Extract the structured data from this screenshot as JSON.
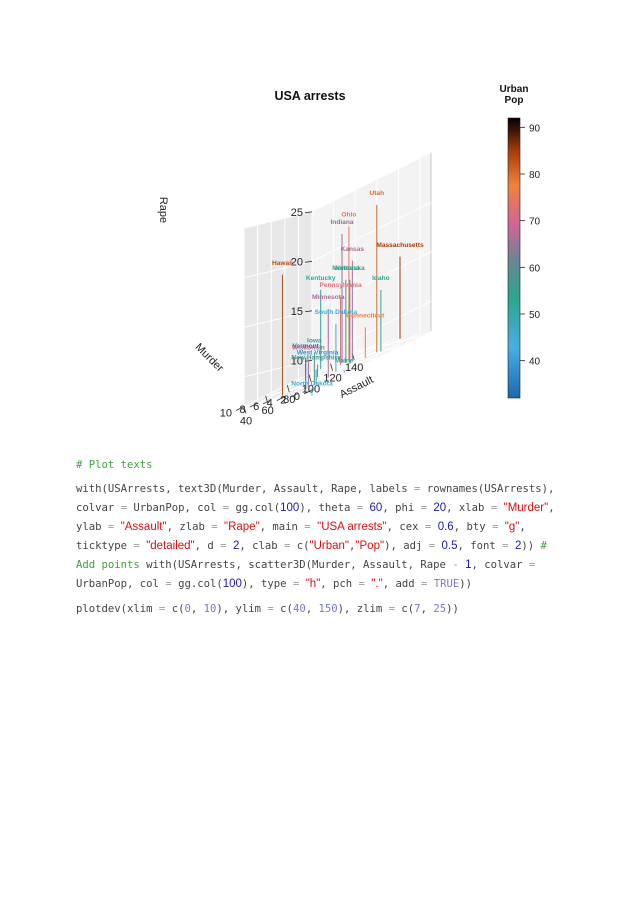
{
  "colors": {
    "comment": "#3f9f3f",
    "string": "#d01010",
    "number": "#1a1aa6",
    "plain": "#444444"
  },
  "chart_data": {
    "type": "scatter",
    "title": "USA arrests",
    "xlabel": "Murder",
    "ylabel": "Assault",
    "zlabel": "Rape",
    "xlim": [
      0,
      10
    ],
    "ylim": [
      40,
      150
    ],
    "zlim": [
      7,
      25
    ],
    "x_ticks": [
      "0",
      "2",
      "4",
      "6",
      "8",
      "10"
    ],
    "y_ticks": [
      "40",
      "60",
      "80",
      "100",
      "120",
      "140"
    ],
    "z_ticks": [
      "10",
      "15",
      "20",
      "25"
    ],
    "colorkey": {
      "title": [
        "Urban",
        "Pop"
      ],
      "ticks": [
        "40",
        "50",
        "60",
        "70",
        "80",
        "90"
      ],
      "range": [
        32,
        92
      ]
    },
    "points": [
      {
        "label": "Utah",
        "x": 3.2,
        "y": 120,
        "z": 22.9,
        "urban": 80
      },
      {
        "label": "Ohio",
        "x": 7.3,
        "y": 120,
        "z": 21.4,
        "urban": 75
      },
      {
        "label": "Indiana",
        "x": 7.2,
        "y": 113,
        "z": 21.0,
        "urban": 65
      },
      {
        "label": "Hawaii",
        "x": 5.3,
        "y": 46,
        "z": 20.2,
        "urban": 83
      },
      {
        "label": "Kansas",
        "x": 6.0,
        "y": 115,
        "z": 18.0,
        "urban": 66
      },
      {
        "label": "Massachusetts",
        "x": 4.4,
        "y": 149,
        "z": 16.3,
        "urban": 85
      },
      {
        "label": "Nebraska",
        "x": 4.3,
        "y": 102,
        "z": 16.5,
        "urban": 62
      },
      {
        "label": "Idaho",
        "x": 2.6,
        "y": 120,
        "z": 14.2,
        "urban": 54
      },
      {
        "label": "Montana",
        "x": 6.0,
        "y": 109,
        "z": 16.4,
        "urban": 53
      },
      {
        "label": "Minnesota",
        "x": 2.7,
        "y": 72,
        "z": 14.9,
        "urban": 66
      },
      {
        "label": "Pennsylvania",
        "x": 6.3,
        "y": 106,
        "z": 14.9,
        "urban": 72
      },
      {
        "label": "Kentucky",
        "x": 9.7,
        "y": 109,
        "z": 16.0,
        "urban": 52
      },
      {
        "label": "South Dakota",
        "x": 3.8,
        "y": 86,
        "z": 12.8,
        "urban": 45
      },
      {
        "label": "Connecticut",
        "x": 3.3,
        "y": 110,
        "z": 11.1,
        "urban": 77
      },
      {
        "label": "Iowa",
        "x": 2.2,
        "y": 56,
        "z": 11.3,
        "urban": 57
      },
      {
        "label": "Vermont",
        "x": 2.2,
        "y": 48,
        "z": 11.2,
        "urban": 32
      },
      {
        "label": "Wisconsin",
        "x": 2.6,
        "y": 53,
        "z": 10.8,
        "urban": 66
      },
      {
        "label": "New Hampshire",
        "x": 2.1,
        "y": 57,
        "z": 9.5,
        "urban": 56
      },
      {
        "label": "Maine",
        "x": 2.1,
        "y": 83,
        "z": 7.8,
        "urban": 51
      },
      {
        "label": "West Virginia",
        "x": 5.7,
        "y": 81,
        "z": 9.3,
        "urban": 39
      },
      {
        "label": "North Dakota",
        "x": 0.8,
        "y": 45,
        "z": 7.3,
        "urban": 44
      }
    ]
  },
  "code": {
    "comment": "# Plot texts",
    "lines": [
      [
        [
          "p",
          "with(USArrests, text3D(Murder, Assault, Rape, labels "
        ],
        [
          "o",
          "="
        ],
        [
          "p",
          " rownames(USArrests),"
        ]
      ],
      [
        [
          "p",
          "colvar "
        ],
        [
          "o",
          "="
        ],
        [
          "p",
          " UrbanPop, col "
        ],
        [
          "o",
          "="
        ],
        [
          "p",
          " gg.col("
        ],
        [
          "n",
          "100"
        ],
        [
          "p",
          "), theta "
        ],
        [
          "o",
          "="
        ],
        [
          "p",
          " "
        ],
        [
          "n",
          "60"
        ],
        [
          "p",
          ", phi "
        ],
        [
          "o",
          "="
        ],
        [
          "p",
          " "
        ],
        [
          "n",
          "20"
        ],
        [
          "p",
          ", xlab "
        ],
        [
          "o",
          "="
        ],
        [
          "p",
          " "
        ],
        [
          "s",
          "\"Murder\""
        ],
        [
          "p",
          ","
        ]
      ],
      [
        [
          "p",
          "ylab "
        ],
        [
          "o",
          "="
        ],
        [
          "p",
          " "
        ],
        [
          "s",
          "\"Assault\""
        ],
        [
          "p",
          ", zlab "
        ],
        [
          "o",
          "="
        ],
        [
          "p",
          " "
        ],
        [
          "s",
          "\"Rape\""
        ],
        [
          "p",
          ", main "
        ],
        [
          "o",
          "="
        ],
        [
          "p",
          " "
        ],
        [
          "s",
          "\"USA arrests\""
        ],
        [
          "p",
          ", cex "
        ],
        [
          "o",
          "="
        ],
        [
          "p",
          " "
        ],
        [
          "n",
          "0.6"
        ],
        [
          "p",
          ", bty "
        ],
        [
          "o",
          "="
        ],
        [
          "p",
          " "
        ],
        [
          "s",
          "\"g\""
        ],
        [
          "p",
          ","
        ]
      ],
      [
        [
          "p",
          "ticktype "
        ],
        [
          "o",
          "="
        ],
        [
          "p",
          " "
        ],
        [
          "s",
          "\"detailed\""
        ],
        [
          "p",
          ", d "
        ],
        [
          "o",
          "="
        ],
        [
          "p",
          " "
        ],
        [
          "n",
          "2"
        ],
        [
          "p",
          ", clab "
        ],
        [
          "o",
          "="
        ],
        [
          "p",
          " c("
        ],
        [
          "s",
          "\"Urban\""
        ],
        [
          "p",
          ","
        ],
        [
          "s",
          "\"Pop\""
        ],
        [
          "p",
          "), adj "
        ],
        [
          "o",
          "="
        ],
        [
          "p",
          " "
        ],
        [
          "n",
          "0.5"
        ],
        [
          "p",
          ", font "
        ],
        [
          "o",
          "="
        ],
        [
          "p",
          " "
        ],
        [
          "n",
          "2"
        ],
        [
          "p",
          "))"
        ],
        [
          "c",
          " #"
        ]
      ],
      [
        [
          "c",
          "Add points"
        ],
        [
          "p",
          " with(USArrests, scatter3D(Murder, Assault, Rape "
        ],
        [
          "o",
          "-"
        ],
        [
          "p",
          " "
        ],
        [
          "n",
          "1"
        ],
        [
          "p",
          ", colvar "
        ],
        [
          "o",
          "="
        ]
      ],
      [
        [
          "p",
          "UrbanPop, col "
        ],
        [
          "o",
          "="
        ],
        [
          "p",
          " gg.col("
        ],
        [
          "n",
          "100"
        ],
        [
          "p",
          "), type "
        ],
        [
          "o",
          "="
        ],
        [
          "p",
          " "
        ],
        [
          "s",
          "\"h\""
        ],
        [
          "p",
          ", pch "
        ],
        [
          "o",
          "="
        ],
        [
          "p",
          " "
        ],
        [
          "s",
          "\".\""
        ],
        [
          "p",
          ", add "
        ],
        [
          "o",
          "="
        ],
        [
          "p",
          " "
        ],
        [
          "b",
          "TRUE"
        ],
        [
          "p",
          "))"
        ]
      ],
      [
        [
          "p",
          "plotdev(xlim "
        ],
        [
          "o",
          "="
        ],
        [
          "p",
          " c("
        ],
        [
          "b",
          "0"
        ],
        [
          "p",
          ", "
        ],
        [
          "b",
          "10"
        ],
        [
          "p",
          "), ylim "
        ],
        [
          "o",
          "="
        ],
        [
          "p",
          " c("
        ],
        [
          "b",
          "40"
        ],
        [
          "p",
          ", "
        ],
        [
          "b",
          "150"
        ],
        [
          "p",
          "), zlim "
        ],
        [
          "o",
          "="
        ],
        [
          "p",
          " c("
        ],
        [
          "b",
          "7"
        ],
        [
          "p",
          ", "
        ],
        [
          "b",
          "25"
        ],
        [
          "p",
          "))"
        ]
      ]
    ]
  }
}
